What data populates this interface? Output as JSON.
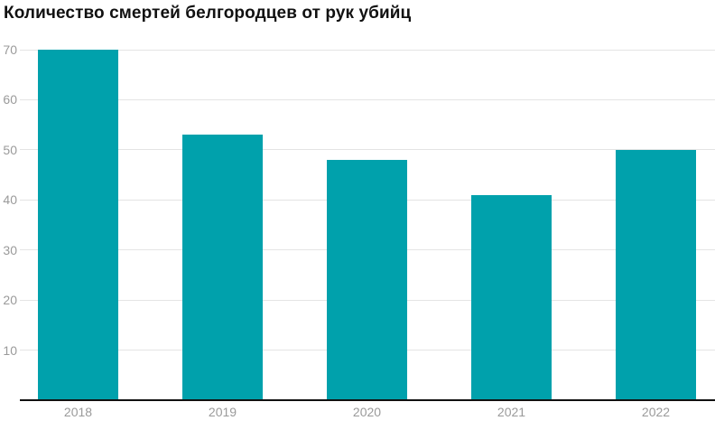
{
  "title": "Количество смертей белгородцев от рук убийц",
  "colors": {
    "background": "#ffffff",
    "bar": "#00a1ac",
    "gridline": "#e4e4e4",
    "axis_line": "#111111",
    "tick_label": "#9a9a9a",
    "title": "#111111"
  },
  "chart_data": {
    "type": "bar",
    "title": "Количество смертей белгородцев от рук убийц",
    "categories": [
      "2018",
      "2019",
      "2020",
      "2021",
      "2022"
    ],
    "values": [
      70,
      53,
      48,
      41,
      50
    ],
    "xlabel": "",
    "ylabel": "",
    "ylim": [
      0,
      70
    ],
    "yticks": [
      10,
      20,
      30,
      40,
      50,
      60,
      70
    ],
    "grid": true,
    "legend": false
  }
}
